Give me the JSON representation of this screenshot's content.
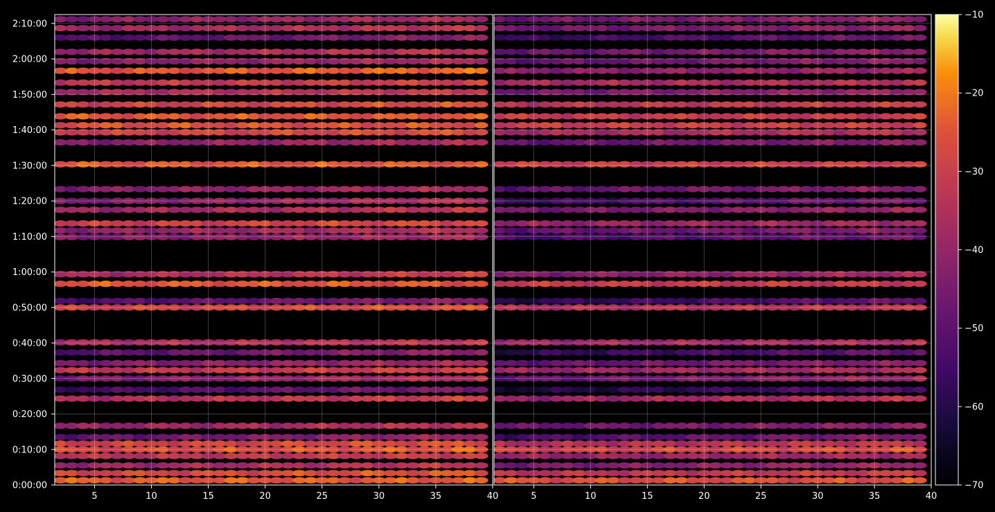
{
  "chart_data": {
    "type": "heatmap",
    "title": "",
    "xlabel": "",
    "ylabel": "",
    "background": "#000000",
    "axis_color": "#ffffff",
    "grid": true,
    "panels": [
      {
        "name": "left",
        "xlim": [
          1.5,
          40
        ],
        "x_ticks": [
          5,
          10,
          15,
          20,
          25,
          30,
          35,
          40
        ]
      },
      {
        "name": "right",
        "xlim": [
          1.5,
          40
        ],
        "x_ticks": [
          5,
          10,
          15,
          20,
          25,
          30,
          35,
          40
        ]
      }
    ],
    "ylim_seconds": [
      0,
      7950
    ],
    "y_ticks": [
      {
        "label": "0:00:00",
        "seconds": 0
      },
      {
        "label": "0:10:00",
        "seconds": 600
      },
      {
        "label": "0:20:00",
        "seconds": 1200
      },
      {
        "label": "0:30:00",
        "seconds": 1800
      },
      {
        "label": "0:40:00",
        "seconds": 2400
      },
      {
        "label": "0:50:00",
        "seconds": 3000
      },
      {
        "label": "1:00:00",
        "seconds": 3600
      },
      {
        "label": "1:10:00",
        "seconds": 4200
      },
      {
        "label": "1:20:00",
        "seconds": 4800
      },
      {
        "label": "1:30:00",
        "seconds": 5400
      },
      {
        "label": "1:40:00",
        "seconds": 6000
      },
      {
        "label": "1:50:00",
        "seconds": 6600
      },
      {
        "label": "2:00:00",
        "seconds": 7200
      },
      {
        "label": "2:10:00",
        "seconds": 7800
      }
    ],
    "colorbar": {
      "cmap": "inferno",
      "vmin": -70,
      "vmax": -10,
      "ticks": [
        {
          "label": "−10",
          "value": -10
        },
        {
          "label": "−20",
          "value": -20
        },
        {
          "label": "−30",
          "value": -30
        },
        {
          "label": "−40",
          "value": -40
        },
        {
          "label": "−50",
          "value": -50
        },
        {
          "label": "−60",
          "value": -60
        },
        {
          "label": "−70",
          "value": -70
        }
      ]
    },
    "x_columns": [
      2,
      3,
      4,
      5,
      6,
      7,
      8,
      9,
      10,
      11,
      12,
      13,
      14,
      15,
      16,
      17,
      18,
      19,
      20,
      21,
      22,
      23,
      24,
      25,
      26,
      27,
      28,
      29,
      30,
      31,
      32,
      33,
      34,
      35,
      36,
      37,
      38,
      39
    ],
    "rows": [
      {
        "t": 80,
        "left": -24,
        "right": -26,
        "rise": 0
      },
      {
        "t": 200,
        "left": -29,
        "right": -31,
        "rise": 1
      },
      {
        "t": 330,
        "left": -40,
        "right": -46,
        "rise": 2
      },
      {
        "t": 490,
        "left": -34,
        "right": -38,
        "rise": 1
      },
      {
        "t": 600,
        "left": -28,
        "right": -30,
        "rise": 1
      },
      {
        "t": 700,
        "left": -30,
        "right": -33,
        "rise": 1
      },
      {
        "t": 810,
        "left": -50,
        "right": -55,
        "rise": 3
      },
      {
        "t": 1000,
        "left": -41,
        "right": -46,
        "rise": 2
      },
      {
        "t": 1460,
        "left": -37,
        "right": -41,
        "rise": 2
      },
      {
        "t": 1610,
        "left": -56,
        "right": -60,
        "rise": 3
      },
      {
        "t": 1800,
        "left": -46,
        "right": -50,
        "rise": 3
      },
      {
        "t": 1940,
        "left": -33,
        "right": -37,
        "rise": 1
      },
      {
        "t": 2060,
        "left": -45,
        "right": -50,
        "rise": 2
      },
      {
        "t": 2240,
        "left": -52,
        "right": -57,
        "rise": 3
      },
      {
        "t": 2410,
        "left": -37,
        "right": -40,
        "rise": 1
      },
      {
        "t": 3000,
        "left": -30,
        "right": -33,
        "rise": 1
      },
      {
        "t": 3110,
        "left": -54,
        "right": -60,
        "rise": 3
      },
      {
        "t": 3400,
        "left": -25,
        "right": -28,
        "rise": 0
      },
      {
        "t": 3560,
        "left": -38,
        "right": -45,
        "rise": 2
      },
      {
        "t": 4190,
        "left": -45,
        "right": -52,
        "rise": 2
      },
      {
        "t": 4300,
        "left": -42,
        "right": -50,
        "rise": 2
      },
      {
        "t": 4420,
        "left": -31,
        "right": -38,
        "rise": 1
      },
      {
        "t": 4650,
        "left": -40,
        "right": -47,
        "rise": 2
      },
      {
        "t": 4800,
        "left": -46,
        "right": -54,
        "rise": 3
      },
      {
        "t": 5000,
        "left": -44,
        "right": -50,
        "rise": 2
      },
      {
        "t": 5420,
        "left": -25,
        "right": -27,
        "rise": 0
      },
      {
        "t": 5790,
        "left": -44,
        "right": -50,
        "rise": 2
      },
      {
        "t": 5960,
        "left": -30,
        "right": -35,
        "rise": 1
      },
      {
        "t": 6080,
        "left": -26,
        "right": -30,
        "rise": 0
      },
      {
        "t": 6230,
        "left": -25,
        "right": -28,
        "rise": 0
      },
      {
        "t": 6430,
        "left": -30,
        "right": -34,
        "rise": 1
      },
      {
        "t": 6640,
        "left": -38,
        "right": -44,
        "rise": 2
      },
      {
        "t": 6800,
        "left": -33,
        "right": -38,
        "rise": 1
      },
      {
        "t": 7000,
        "left": -26,
        "right": -40,
        "rise": 1
      },
      {
        "t": 7160,
        "left": -44,
        "right": -50,
        "rise": 2
      },
      {
        "t": 7320,
        "left": -40,
        "right": -46,
        "rise": 2
      },
      {
        "t": 7560,
        "left": -53,
        "right": -58,
        "rise": 3
      },
      {
        "t": 7720,
        "left": -40,
        "right": -45,
        "rise": 2
      },
      {
        "t": 7870,
        "left": -44,
        "right": -48,
        "rise": 2
      }
    ]
  }
}
